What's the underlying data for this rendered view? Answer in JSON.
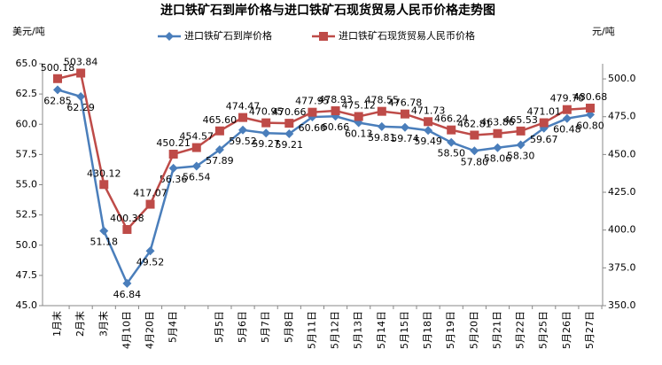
{
  "chart_data": {
    "type": "line",
    "title": "进口铁矿石到岸价格与进口铁矿石现货贸易人民币价格走势图",
    "y_label": "美元/吨",
    "y2_label": "元/吨",
    "categories": [
      "1月末",
      "2月末",
      "3月末",
      "4月10日",
      "4月20日",
      "5月4日",
      null,
      "5月5日",
      "5月6日",
      "5月7日",
      "5月8日",
      "5月11日",
      "5月12日",
      "5月13日",
      "5月14日",
      "5月15日",
      "5月18日",
      "5月19日",
      "5月20日",
      "5月21日",
      "5月22日",
      "5月25日",
      "5月26日",
      "5月27日"
    ],
    "series": [
      {
        "name": "进口铁矿石到岸价格",
        "color": "#4a7ebb",
        "marker": "diamond",
        "values": [
          62.85,
          62.29,
          51.18,
          46.84,
          49.52,
          56.36,
          56.54,
          57.89,
          59.52,
          59.27,
          59.21,
          60.6,
          60.66,
          60.13,
          59.81,
          59.74,
          59.49,
          58.5,
          57.8,
          58.06,
          58.3,
          59.67,
          60.48,
          60.8
        ],
        "value_labels": [
          "62.85",
          "62.29",
          "51.18",
          "46.84",
          "49.52",
          "56.36",
          "56.54",
          "57.89",
          "59.52",
          "59.27",
          "59.21",
          "60.60",
          "60.66",
          "60.13",
          "59.81",
          "59.74",
          "59.49",
          "58.50",
          "57.80",
          "58.06",
          "58.30",
          "59.67",
          "60.48",
          "60.80"
        ]
      },
      {
        "name": "进口铁矿石现货贸易人民币价格",
        "color": "#be4b48",
        "marker": "square",
        "axis": "y2",
        "values": [
          500.18,
          503.84,
          430.12,
          400.38,
          417.07,
          450.21,
          454.57,
          465.6,
          474.47,
          470.95,
          470.66,
          477.95,
          478.93,
          475.12,
          478.55,
          476.78,
          471.73,
          466.24,
          462.81,
          463.86,
          465.53,
          471.01,
          479.7,
          480.68
        ],
        "value_labels": [
          "500.18",
          "503.84",
          "430.12",
          "400.38",
          "417.07",
          "450.21",
          "454.57",
          "465.60",
          "474.47",
          "470.95",
          "470.66",
          "477.95",
          "478.93",
          "475.12",
          "478.55",
          "476.78",
          "471.73",
          "466.24",
          "462.81",
          "463.86",
          "465.53",
          "471.01",
          "479.70",
          "480.68"
        ]
      }
    ],
    "ylim": [
      45,
      65
    ],
    "yticks": [
      {
        "value": 45,
        "label": "45.0"
      },
      {
        "value": 47.5,
        "label": "47.5"
      },
      {
        "value": 50,
        "label": "50.0"
      },
      {
        "value": 52.5,
        "label": "52.5"
      },
      {
        "value": 55,
        "label": "55.0"
      },
      {
        "value": 57.5,
        "label": "57.5"
      },
      {
        "value": 60,
        "label": "60.0"
      },
      {
        "value": 62.5,
        "label": "62.5"
      },
      {
        "value": 65,
        "label": "65.0"
      }
    ],
    "y2lim": [
      350,
      510
    ],
    "y2ticks": [
      {
        "value": 350,
        "label": "350.0"
      },
      {
        "value": 375,
        "label": "375.0"
      },
      {
        "value": 400,
        "label": "400.0"
      },
      {
        "value": 425,
        "label": "425.0"
      },
      {
        "value": 450,
        "label": "450.0"
      },
      {
        "value": 475,
        "label": "475.0"
      },
      {
        "value": 500,
        "label": "500.0"
      }
    ],
    "legend": "top"
  }
}
